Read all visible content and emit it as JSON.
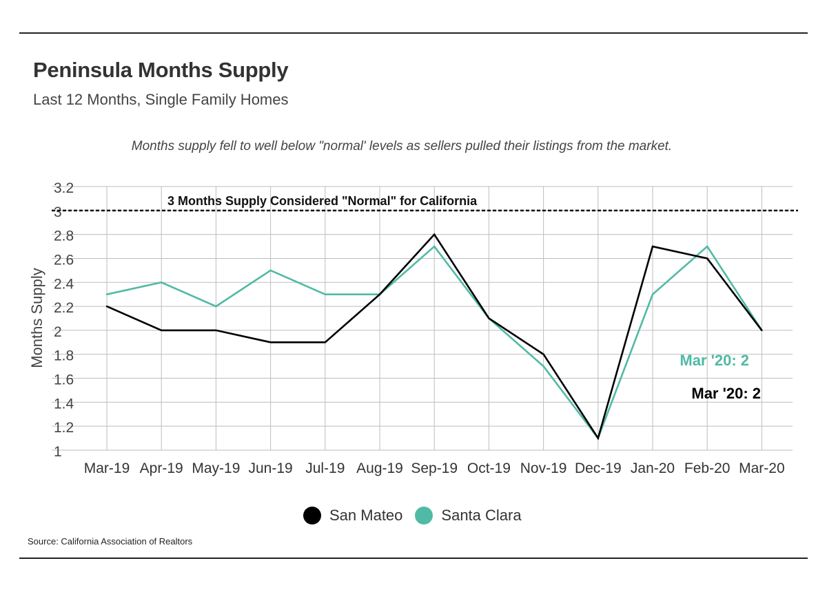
{
  "title": "Peninsula Months Supply",
  "subtitle": "Last 12 Months, Single Family Homes",
  "annotation": "Months supply fell to well below \"normal' levels as sellers pulled their listings from the market.",
  "source": "Source:  California Association of Realtors",
  "chart_data": {
    "type": "line",
    "categories": [
      "Mar-19",
      "Apr-19",
      "May-19",
      "Jun-19",
      "Jul-19",
      "Aug-19",
      "Sep-19",
      "Oct-19",
      "Nov-19",
      "Dec-19",
      "Jan-20",
      "Feb-20",
      "Mar-20"
    ],
    "series": [
      {
        "name": "San Mateo",
        "color": "#000000",
        "values": [
          2.2,
          2.0,
          2.0,
          1.9,
          1.9,
          2.3,
          2.8,
          2.1,
          1.8,
          1.1,
          2.7,
          2.6,
          2.0
        ]
      },
      {
        "name": "Santa Clara",
        "color": "#4fbaa5",
        "values": [
          2.3,
          2.4,
          2.2,
          2.5,
          2.3,
          2.3,
          2.7,
          2.1,
          1.7,
          1.1,
          2.3,
          2.7,
          2.0
        ]
      }
    ],
    "ylabel": "Months Supply",
    "xlabel": "",
    "ylim": [
      1,
      3.2
    ],
    "yticks": [
      "1",
      "1.2",
      "1.4",
      "1.6",
      "1.8",
      "2",
      "2.2",
      "2.4",
      "2.6",
      "2.8",
      "3",
      "3.2"
    ],
    "reference_line": {
      "value": 3,
      "label": "3 Months Supply Considered \"Normal\" for California"
    },
    "end_labels": [
      {
        "series": "Santa Clara",
        "text": "Mar '20: 2",
        "color": "#4fbaa5"
      },
      {
        "series": "San Mateo",
        "text": "Mar '20: 2",
        "color": "#000000"
      }
    ],
    "grid": true,
    "legend_position": "bottom-center"
  }
}
